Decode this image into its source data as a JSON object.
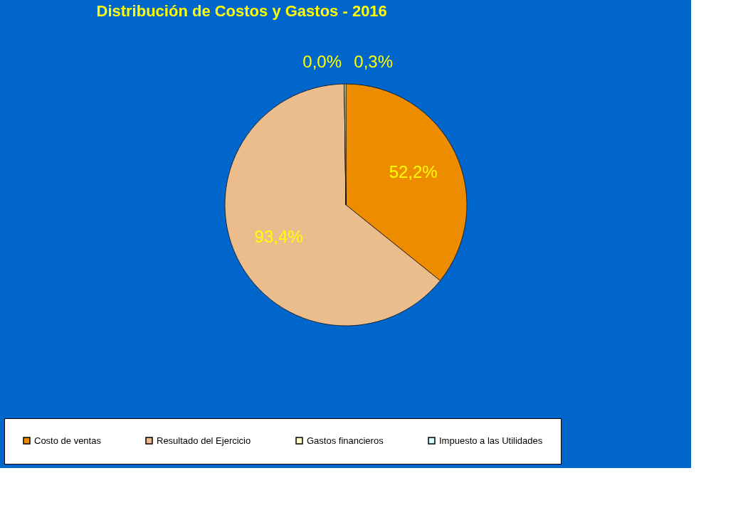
{
  "chart_data": {
    "type": "pie",
    "title": "Distribución de Costos y Gastos - 2016",
    "categories": [
      "Costo de ventas",
      "Resultado del Ejercicio",
      "Gastos financieros",
      "Impuesto a las Utilidades"
    ],
    "values": [
      52.2,
      93.4,
      0.0,
      0.3
    ],
    "colors": [
      "#ee8c00",
      "#ecbd8c",
      "#ffffc0",
      "#ccffff"
    ],
    "value_labels": [
      "52,2%",
      "93,4%",
      "0,0%",
      "0,3%"
    ],
    "legend": "bottom"
  }
}
